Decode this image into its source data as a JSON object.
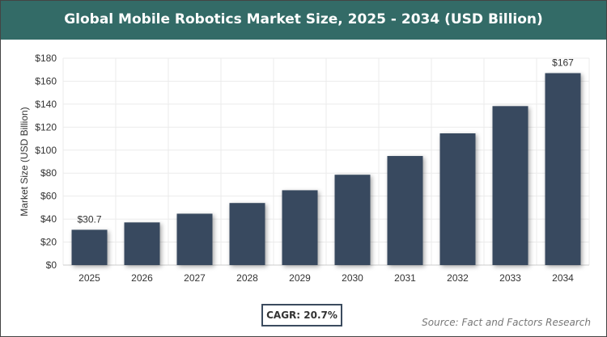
{
  "chart_data": {
    "type": "bar",
    "title": "Global Mobile Robotics Market Size, 2025 - 2034 (USD Billion)",
    "ylabel": "Market Size (USD Billion)",
    "xlabel": "",
    "categories": [
      "2025",
      "2026",
      "2027",
      "2028",
      "2029",
      "2030",
      "2031",
      "2032",
      "2033",
      "2034"
    ],
    "values": [
      30.7,
      37.1,
      44.7,
      54.0,
      65.1,
      78.6,
      94.9,
      114.6,
      138.3,
      167
    ],
    "data_labels": {
      "0": "$30.7",
      "9": "$167"
    },
    "ylim": [
      0,
      180
    ],
    "yticks": [
      0,
      20,
      40,
      60,
      80,
      100,
      120,
      140,
      160,
      180
    ],
    "ytick_format": "$",
    "grid": true,
    "bar_color": "#374a5f",
    "title_bar_color": "#336b67"
  },
  "footer": {
    "cagr": "CAGR: 20.7%",
    "source": "Source: Fact and Factors Research"
  }
}
